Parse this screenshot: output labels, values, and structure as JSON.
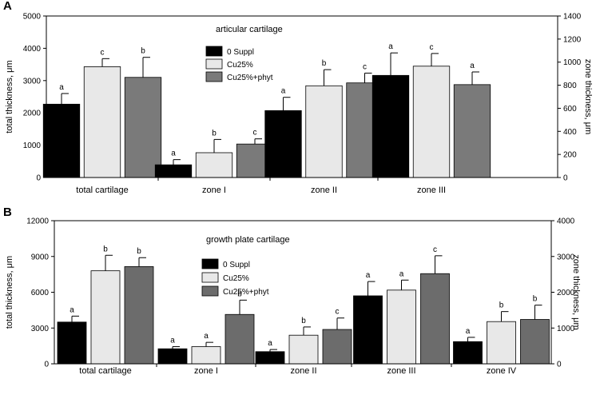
{
  "chart_data": [
    {
      "type": "bar",
      "panel_label": "A",
      "title": "articular cartilage",
      "ylabel_left": "total thickness, μm",
      "ylabel_right": "zone thickness, μm",
      "ylim_left": [
        0,
        5000
      ],
      "yticks_left": [
        "0",
        "1000",
        "2000",
        "3000",
        "4000",
        "5000"
      ],
      "ylim_right": [
        0,
        1400
      ],
      "yticks_right": [
        "0",
        "200",
        "400",
        "600",
        "800",
        "1000",
        "1200",
        "1400"
      ],
      "legend": [
        "0 Suppl",
        "Cu25%",
        "Cu25%+phyt"
      ],
      "groups": [
        {
          "label": "total cartilage",
          "axis": "left",
          "values": [
            2270,
            3430,
            3100
          ],
          "errors": [
            330,
            250,
            620
          ],
          "sig": [
            "a",
            "c",
            "b"
          ]
        },
        {
          "label": "zone I",
          "axis": "right",
          "values": [
            110,
            215,
            290
          ],
          "errors": [
            45,
            115,
            45
          ],
          "sig": [
            "a",
            "b",
            "c"
          ]
        },
        {
          "label": "zone II",
          "axis": "right",
          "values": [
            580,
            795,
            820
          ],
          "errors": [
            115,
            140,
            85
          ],
          "sig": [
            "a",
            "b",
            "c"
          ]
        },
        {
          "label": "zone III",
          "axis": "right",
          "values": [
            885,
            965,
            805
          ],
          "errors": [
            195,
            110,
            110
          ],
          "sig": [
            "a",
            "c",
            "a"
          ]
        }
      ]
    },
    {
      "type": "bar",
      "panel_label": "B",
      "title": "growth plate cartilage",
      "ylabel_left": "total thickness, μm",
      "ylabel_right": "zone thickness, μm",
      "ylim_left": [
        0,
        12000
      ],
      "yticks_left": [
        "0",
        "3000",
        "6000",
        "9000",
        "12000"
      ],
      "ylim_right": [
        0,
        4000
      ],
      "yticks_right": [
        "0",
        "1000",
        "2000",
        "3000",
        "4000"
      ],
      "legend": [
        "0 Suppl",
        "Cu25%",
        "Cu25%+phyt"
      ],
      "groups": [
        {
          "label": "total cartilage",
          "axis": "left",
          "values": [
            3500,
            7800,
            8150
          ],
          "errors": [
            500,
            1300,
            750
          ],
          "sig": [
            "a",
            "b",
            "b"
          ]
        },
        {
          "label": "zone I",
          "axis": "right",
          "values": [
            420,
            480,
            1380
          ],
          "errors": [
            60,
            120,
            400
          ],
          "sig": [
            "a",
            "a",
            "b"
          ]
        },
        {
          "label": "zone II",
          "axis": "right",
          "values": [
            340,
            800,
            960
          ],
          "errors": [
            60,
            230,
            320
          ],
          "sig": [
            "a",
            "b",
            "c"
          ]
        },
        {
          "label": "zone III",
          "axis": "right",
          "values": [
            1900,
            2060,
            2520
          ],
          "errors": [
            400,
            280,
            500
          ],
          "sig": [
            "a",
            "a",
            "c"
          ]
        },
        {
          "label": "zone IV",
          "axis": "right",
          "values": [
            620,
            1180,
            1240
          ],
          "errors": [
            120,
            280,
            400
          ],
          "sig": [
            "a",
            "b",
            "b"
          ]
        }
      ]
    }
  ],
  "colors": {
    "series": [
      "#000000",
      "#e8e8e8",
      "#7a7a7a"
    ],
    "series_b": [
      "#000000",
      "#e8e8e8",
      "#6c6c6c"
    ],
    "stroke": "#000000"
  }
}
